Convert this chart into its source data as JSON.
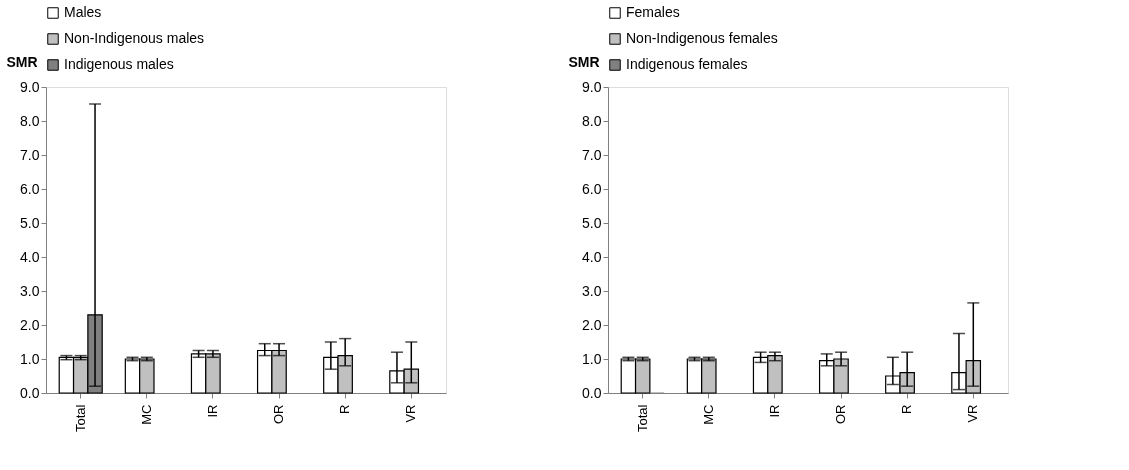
{
  "chart_data": [
    {
      "type": "bar",
      "ylabel": "SMR",
      "categories": [
        "Total",
        "MC",
        "IR",
        "OR",
        "R",
        "VR"
      ],
      "ylim": [
        0,
        9
      ],
      "yticks": [
        {
          "value": 0,
          "label": "0.0"
        },
        {
          "value": 1,
          "label": "1.0"
        },
        {
          "value": 2,
          "label": "2.0"
        },
        {
          "value": 3,
          "label": "3.0"
        },
        {
          "value": 4,
          "label": "4.0"
        },
        {
          "value": 5,
          "label": "5.0"
        },
        {
          "value": 6,
          "label": "6.0"
        },
        {
          "value": 7,
          "label": "7.0"
        },
        {
          "value": 8,
          "label": "8.0"
        },
        {
          "value": 9,
          "label": "9.0"
        }
      ],
      "legend": "top",
      "grid": false,
      "series": [
        {
          "name": "Males",
          "color": "#ffffff",
          "values": [
            1.05,
            1.0,
            1.15,
            1.25,
            1.05,
            0.65
          ],
          "errors": [
            [
              0.98,
              1.1
            ],
            [
              0.95,
              1.05
            ],
            [
              1.05,
              1.25
            ],
            [
              1.1,
              1.45
            ],
            [
              0.7,
              1.5
            ],
            [
              0.3,
              1.2
            ]
          ]
        },
        {
          "name": "Non-Indigenous males",
          "color": "#c0c0c0",
          "values": [
            1.05,
            1.0,
            1.15,
            1.25,
            1.1,
            0.7
          ],
          "errors": [
            [
              0.98,
              1.1
            ],
            [
              0.95,
              1.05
            ],
            [
              1.05,
              1.25
            ],
            [
              1.1,
              1.45
            ],
            [
              0.8,
              1.6
            ],
            [
              0.3,
              1.5
            ]
          ]
        },
        {
          "name": "Indigenous males",
          "color": "#808080",
          "values": [
            2.3,
            null,
            null,
            null,
            null,
            null
          ],
          "errors": [
            [
              0.2,
              8.5
            ],
            null,
            null,
            null,
            null,
            null
          ]
        }
      ]
    },
    {
      "type": "bar",
      "ylabel": "SMR",
      "categories": [
        "Total",
        "MC",
        "IR",
        "OR",
        "R",
        "VR"
      ],
      "ylim": [
        0,
        9
      ],
      "yticks": [
        {
          "value": 0,
          "label": "0.0"
        },
        {
          "value": 1,
          "label": "1.0"
        },
        {
          "value": 2,
          "label": "2.0"
        },
        {
          "value": 3,
          "label": "3.0"
        },
        {
          "value": 4,
          "label": "4.0"
        },
        {
          "value": 5,
          "label": "5.0"
        },
        {
          "value": 6,
          "label": "6.0"
        },
        {
          "value": 7,
          "label": "7.0"
        },
        {
          "value": 8,
          "label": "8.0"
        },
        {
          "value": 9,
          "label": "9.0"
        }
      ],
      "legend": "top",
      "grid": false,
      "series": [
        {
          "name": "Females",
          "color": "#ffffff",
          "values": [
            1.0,
            1.0,
            1.05,
            0.95,
            0.5,
            0.6
          ],
          "errors": [
            [
              0.95,
              1.05
            ],
            [
              0.95,
              1.05
            ],
            [
              0.9,
              1.2
            ],
            [
              0.8,
              1.15
            ],
            [
              0.25,
              1.05
            ],
            [
              0.1,
              1.75
            ]
          ]
        },
        {
          "name": "Non-Indigenous females",
          "color": "#c0c0c0",
          "values": [
            1.0,
            1.0,
            1.1,
            1.0,
            0.6,
            0.95
          ],
          "errors": [
            [
              0.95,
              1.05
            ],
            [
              0.95,
              1.05
            ],
            [
              0.95,
              1.2
            ],
            [
              0.8,
              1.2
            ],
            [
              0.2,
              1.2
            ],
            [
              0.2,
              2.65
            ]
          ]
        },
        {
          "name": "Indigenous females",
          "color": "#808080",
          "values": [
            0,
            null,
            null,
            null,
            null,
            null
          ],
          "errors": [
            null,
            null,
            null,
            null,
            null,
            null
          ]
        }
      ]
    }
  ]
}
